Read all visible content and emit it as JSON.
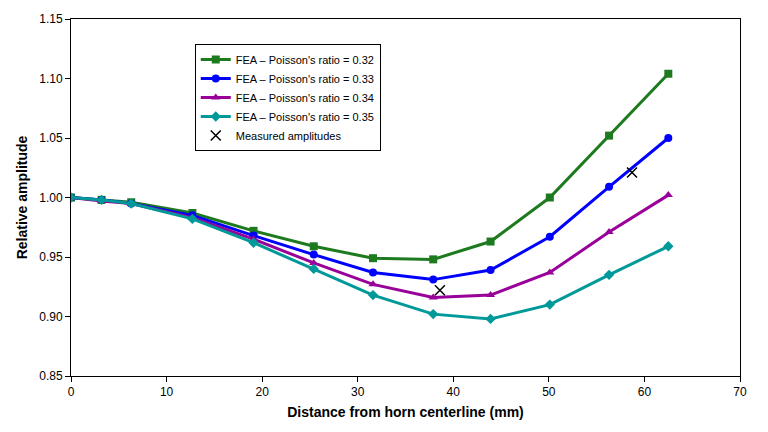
{
  "chart_data": {
    "type": "line",
    "x_label": "Distance from horn centerline (mm)",
    "y_label": "Relative amplitude",
    "xlim": [
      0,
      70
    ],
    "xticks": [
      0,
      10,
      20,
      30,
      40,
      50,
      60,
      70
    ],
    "ylim": [
      0.85,
      1.15
    ],
    "yticks": [
      {
        "value": 0.85,
        "label": "0.85"
      },
      {
        "value": 0.9,
        "label": "0.90"
      },
      {
        "value": 0.95,
        "label": "0.95"
      },
      {
        "value": 1.0,
        "label": "1.00"
      },
      {
        "value": 1.05,
        "label": "1.05"
      },
      {
        "value": 1.1,
        "label": "1.10"
      },
      {
        "value": 1.15,
        "label": "1.15"
      }
    ],
    "grid": false,
    "legend": "upper left",
    "series": [
      {
        "name": "FEA – Poisson's ratio = 0.32",
        "color": "#1e7a1e",
        "marker": "square",
        "type": "line",
        "x": [
          0,
          3.2,
          6.3,
          12.7,
          19.1,
          25.4,
          31.6,
          37.9,
          43.9,
          50.1,
          56.3,
          62.5
        ],
        "values": [
          1.0,
          0.998,
          0.996,
          0.987,
          0.972,
          0.959,
          0.949,
          0.948,
          0.963,
          1.0,
          1.052,
          1.104
        ]
      },
      {
        "name": "FEA – Poisson's ratio = 0.33",
        "color": "#0000ff",
        "marker": "circle",
        "type": "line",
        "x": [
          0,
          3.2,
          6.3,
          12.7,
          19.1,
          25.4,
          31.6,
          37.9,
          43.9,
          50.1,
          56.3,
          62.5
        ],
        "values": [
          1.0,
          0.998,
          0.995,
          0.985,
          0.968,
          0.952,
          0.937,
          0.931,
          0.939,
          0.967,
          1.009,
          1.05
        ]
      },
      {
        "name": "FEA – Poisson's ratio = 0.34",
        "color": "#990099",
        "marker": "triangle-up",
        "type": "line",
        "x": [
          0,
          3.2,
          6.3,
          12.7,
          19.1,
          25.4,
          31.6,
          37.9,
          43.9,
          50.1,
          56.3,
          62.5
        ],
        "values": [
          1.0,
          0.997,
          0.995,
          0.983,
          0.965,
          0.945,
          0.927,
          0.916,
          0.918,
          0.937,
          0.971,
          1.002
        ]
      },
      {
        "name": "FEA – Poisson's ratio = 0.35",
        "color": "#009999",
        "marker": "diamond",
        "type": "line",
        "x": [
          0,
          3.2,
          6.3,
          12.7,
          19.1,
          25.4,
          31.6,
          37.9,
          43.9,
          50.1,
          56.3,
          62.5
        ],
        "values": [
          1.0,
          0.998,
          0.995,
          0.982,
          0.962,
          0.94,
          0.918,
          0.902,
          0.898,
          0.91,
          0.935,
          0.959
        ]
      },
      {
        "name": "Measured amplitudes",
        "color": "#000000",
        "marker": "x",
        "type": "scatter",
        "x": [
          38.6,
          58.7
        ],
        "values": [
          0.922,
          1.021
        ]
      }
    ]
  }
}
